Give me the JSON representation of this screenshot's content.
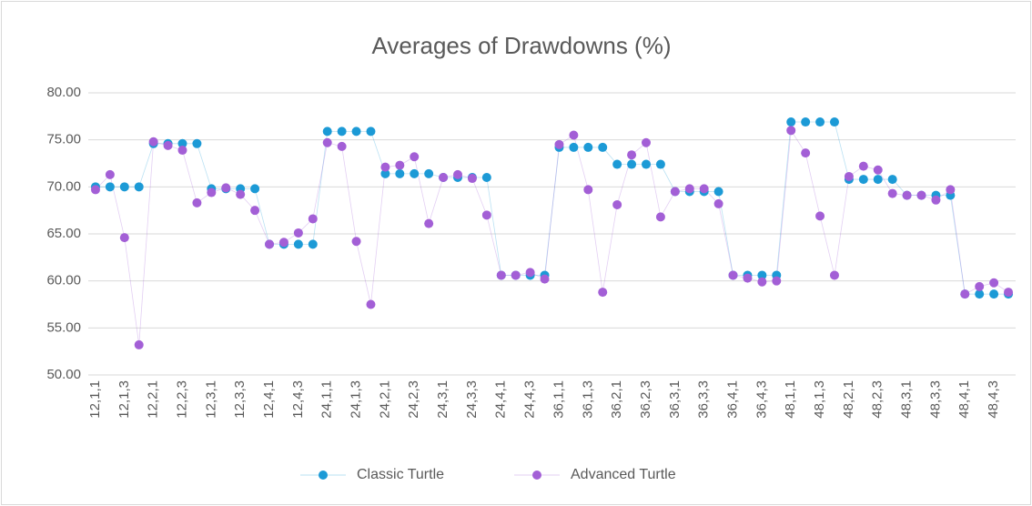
{
  "chart_data": {
    "type": "scatter-line",
    "title": "Averages of Drawdowns (%)",
    "categories": [
      "12,1,1",
      null,
      "12,1,3",
      null,
      "12,2,1",
      null,
      "12,2,3",
      null,
      "12,3,1",
      null,
      "12,3,3",
      null,
      "12,4,1",
      null,
      "12,4,3",
      null,
      "24,1,1",
      null,
      "24,1,3",
      null,
      "24,2,1",
      null,
      "24,2,3",
      null,
      "24,3,1",
      null,
      "24,3,3",
      null,
      "24,4,1",
      null,
      "24,4,3",
      null,
      "36,1,1",
      null,
      "36,1,3",
      null,
      "36,2,1",
      null,
      "36,2,3",
      null,
      "36,3,1",
      null,
      "36,3,3",
      null,
      "36,4,1",
      null,
      "36,4,3",
      null,
      "48,1,1",
      null,
      "48,1,3",
      null,
      "48,2,1",
      null,
      "48,2,3",
      null,
      "48,3,1",
      null,
      "48,3,3",
      null,
      "48,4,1",
      null,
      "48,4,3",
      null
    ],
    "series": [
      {
        "name": "Classic Turtle",
        "color": "#1c9ad6",
        "values": [
          70.0,
          70.0,
          70.0,
          70.0,
          74.6,
          74.6,
          74.6,
          74.6,
          69.8,
          69.8,
          69.8,
          69.8,
          63.9,
          63.9,
          63.9,
          63.9,
          75.9,
          75.9,
          75.9,
          75.9,
          71.4,
          71.4,
          71.4,
          71.4,
          71.0,
          71.0,
          71.0,
          71.0,
          60.6,
          60.6,
          60.6,
          60.6,
          74.2,
          74.2,
          74.2,
          74.2,
          72.4,
          72.4,
          72.4,
          72.4,
          69.5,
          69.5,
          69.5,
          69.5,
          60.6,
          60.6,
          60.6,
          60.6,
          76.9,
          76.9,
          76.9,
          76.9,
          70.8,
          70.8,
          70.8,
          70.8,
          69.1,
          69.1,
          69.1,
          69.1,
          58.6,
          58.6,
          58.6,
          58.6
        ]
      },
      {
        "name": "Advanced Turtle",
        "color": "#a35fd6",
        "values": [
          69.7,
          71.3,
          64.6,
          53.2,
          74.8,
          74.4,
          73.9,
          68.3,
          69.4,
          69.9,
          69.2,
          67.5,
          63.9,
          64.1,
          65.1,
          66.6,
          74.7,
          74.3,
          64.2,
          57.5,
          72.1,
          72.3,
          73.2,
          66.1,
          71.0,
          71.3,
          70.9,
          67.0,
          60.6,
          60.6,
          60.9,
          60.2,
          74.5,
          75.5,
          69.7,
          58.8,
          68.1,
          73.4,
          74.7,
          66.8,
          69.5,
          69.8,
          69.8,
          68.2,
          60.6,
          60.3,
          59.9,
          60.0,
          76.0,
          73.6,
          66.9,
          60.6,
          71.1,
          72.2,
          71.8,
          69.3,
          69.1,
          69.1,
          68.6,
          69.7,
          58.6,
          59.4,
          59.8,
          58.8
        ]
      }
    ],
    "ylim": [
      50,
      80
    ],
    "yticks": [
      {
        "value": 50,
        "label": "50.00"
      },
      {
        "value": 55,
        "label": "55.00"
      },
      {
        "value": 60,
        "label": "60.00"
      },
      {
        "value": 65,
        "label": "65.00"
      },
      {
        "value": 70,
        "label": "70.00"
      },
      {
        "value": 75,
        "label": "75.00"
      },
      {
        "value": 80,
        "label": "80.00"
      }
    ],
    "grid": true,
    "legend": "bottom"
  }
}
